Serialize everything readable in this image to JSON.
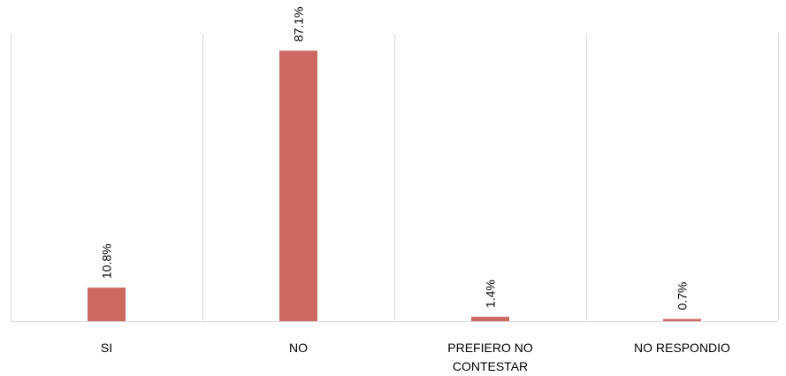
{
  "chart_data": {
    "type": "bar",
    "categories": [
      [
        "SI"
      ],
      [
        "NO"
      ],
      [
        "PREFIERO NO",
        "CONTESTAR"
      ],
      [
        "NO RESPONDIO"
      ]
    ],
    "values": [
      10.8,
      87.1,
      1.4,
      0.7
    ],
    "data_labels": [
      "10.8%",
      "87.1%",
      "1.4%",
      "0.7%"
    ],
    "value_unit": "%",
    "ylim": [
      0,
      100
    ],
    "grid": "vertical separators between categories",
    "legend": "none",
    "bar_color": "#CD6860"
  }
}
